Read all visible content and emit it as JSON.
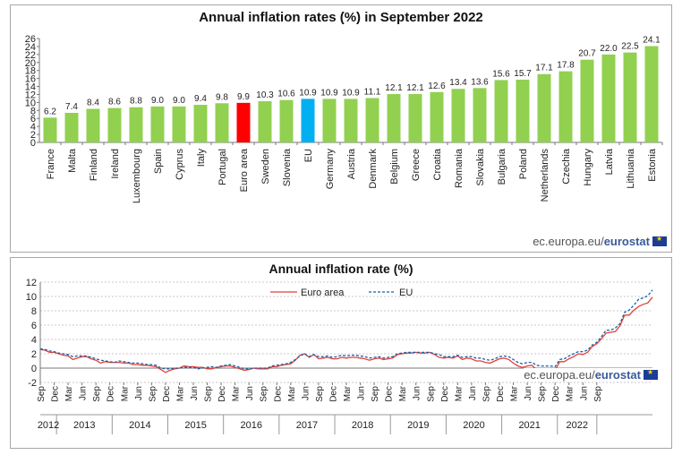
{
  "source": {
    "prefix": "ec.europa.eu/",
    "brand": "eurostat",
    "logo_icon": "eu-flag-icon"
  },
  "chart_data": [
    {
      "type": "bar",
      "title": "Annual inflation rates (%) in September 2022",
      "categories": [
        "France",
        "Malta",
        "Finland",
        "Ireland",
        "Luxembourg",
        "Spain",
        "Cyprus",
        "Italy",
        "Portugal",
        "Euro area",
        "Sweden",
        "Slovenia",
        "EU",
        "Germany",
        "Austria",
        "Denmark",
        "Belgium",
        "Greece",
        "Croatia",
        "Romania",
        "Slovakia",
        "Bulgaria",
        "Poland",
        "Netherlands",
        "Czechia",
        "Hungary",
        "Latvia",
        "Lithuania",
        "Estonia"
      ],
      "values": [
        6.2,
        7.4,
        8.4,
        8.6,
        8.8,
        9.0,
        9.0,
        9.4,
        9.8,
        9.9,
        10.3,
        10.6,
        10.9,
        10.9,
        10.9,
        11.1,
        12.1,
        12.1,
        12.6,
        13.4,
        13.6,
        15.6,
        15.7,
        17.1,
        17.8,
        20.7,
        22.0,
        22.5,
        24.1
      ],
      "value_labels": [
        "6.2",
        "7.4",
        "8.4",
        "8.6",
        "8.8",
        "9.0",
        "9.0",
        "9.4",
        "9.8",
        "9.9",
        "10.3",
        "10.6",
        "10.9",
        "10.9",
        "10.9",
        "11.1",
        "12.1",
        "12.1",
        "12.6",
        "13.4",
        "13.6",
        "15.6",
        "15.7",
        "17.1",
        "17.8",
        "20.7",
        "22.0",
        "22.5",
        "24.1"
      ],
      "ylim": [
        0,
        26
      ],
      "yticks": [
        "0",
        "2",
        "4",
        "6",
        "8",
        "10",
        "12",
        "14",
        "16",
        "18",
        "20",
        "22",
        "24",
        "26"
      ],
      "colors": {
        "default": "#92d050",
        "Euro area": "#ff0000",
        "EU": "#00b0f0"
      },
      "grid": false
    },
    {
      "type": "line",
      "title": "Annual inflation rate (%)",
      "ylim": [
        -2,
        12
      ],
      "yticks": [
        "-2",
        "0",
        "2",
        "4",
        "6",
        "8",
        "10",
        "12"
      ],
      "x_start": "2012-09",
      "x_end": "2022-09",
      "month_ticks": [
        "Sep",
        "Dec",
        "Mar",
        "Jun",
        "Sep",
        "Dec",
        "Mar",
        "Jun",
        "Sep",
        "Dec",
        "Mar",
        "Jun",
        "Sep",
        "Dec",
        "Mar",
        "Jun",
        "Sep",
        "Dec",
        "Mar",
        "Jun",
        "Sep",
        "Dec",
        "Mar",
        "Jun",
        "Sep",
        "Dec",
        "Mar",
        "Jun",
        "Sep",
        "Dec",
        "Mar",
        "Jun",
        "Sep",
        "Dec",
        "Mar",
        "Jun",
        "Sep",
        "Dec",
        "Mar",
        "Jun",
        "Sep"
      ],
      "year_labels": [
        "2012",
        "2013",
        "2014",
        "2015",
        "2016",
        "2017",
        "2018",
        "2019",
        "2020",
        "2021",
        "2022"
      ],
      "legend_position": "top-center",
      "grid": true,
      "series": [
        {
          "name": "Euro area",
          "color": "#e0413a",
          "dash": "solid",
          "values": [
            2.6,
            2.5,
            2.2,
            2.2,
            2.0,
            1.8,
            1.7,
            1.2,
            1.4,
            1.6,
            1.6,
            1.3,
            1.1,
            0.7,
            0.9,
            0.8,
            0.8,
            0.8,
            0.7,
            0.7,
            0.5,
            0.5,
            0.4,
            0.4,
            0.3,
            0.2,
            -0.2,
            -0.6,
            -0.3,
            -0.1,
            0.0,
            0.3,
            0.2,
            0.2,
            0.1,
            0.1,
            -0.1,
            -0.1,
            0.1,
            0.2,
            0.3,
            0.3,
            0.1,
            -0.1,
            -0.3,
            -0.2,
            0.0,
            -0.1,
            -0.1,
            -0.1,
            0.2,
            0.2,
            0.4,
            0.5,
            0.6,
            1.1,
            1.8,
            2.0,
            1.5,
            1.9,
            1.3,
            1.4,
            1.5,
            1.3,
            1.3,
            1.5,
            1.4,
            1.5,
            1.5,
            1.4,
            1.3,
            1.1,
            1.3,
            1.4,
            1.2,
            1.3,
            1.4,
            1.9,
            2.0,
            2.1,
            2.1,
            2.2,
            2.1,
            2.1,
            2.2,
            1.9,
            1.5,
            1.4,
            1.5,
            1.4,
            1.7,
            1.2,
            1.4,
            1.3,
            1.0,
            1.0,
            0.8,
            0.7,
            1.0,
            1.3,
            1.4,
            1.2,
            0.7,
            0.3,
            0.1,
            0.3,
            0.4,
            -0.2,
            -0.3,
            -0.3,
            -0.3,
            -0.3,
            0.9,
            0.9,
            1.3,
            1.6,
            2.0,
            1.9,
            2.2,
            3.0,
            3.4,
            4.1,
            4.9,
            5.0,
            5.1,
            5.9,
            7.4,
            7.4,
            8.1,
            8.6,
            8.9,
            9.1,
            9.9
          ]
        },
        {
          "name": "EU",
          "color": "#1f5fa8",
          "dash": "dashed",
          "values": [
            2.7,
            2.6,
            2.4,
            2.3,
            2.1,
            2.0,
            1.9,
            1.6,
            1.7,
            1.7,
            1.7,
            1.5,
            1.3,
            1.1,
            1.0,
            0.9,
            0.8,
            1.0,
            0.9,
            0.8,
            0.7,
            0.7,
            0.6,
            0.5,
            0.5,
            0.4,
            0.0,
            -0.1,
            -0.1,
            0.0,
            0.0,
            0.1,
            0.1,
            0.1,
            -0.1,
            0.0,
            0.1,
            0.2,
            0.1,
            0.3,
            0.4,
            0.5,
            0.3,
            0.1,
            -0.1,
            -0.1,
            0.0,
            0.0,
            0.0,
            0.0,
            0.3,
            0.4,
            0.5,
            0.6,
            0.8,
            1.2,
            1.7,
            2.0,
            1.6,
            1.9,
            1.6,
            1.6,
            1.7,
            1.5,
            1.6,
            1.8,
            1.7,
            1.8,
            1.8,
            1.7,
            1.6,
            1.4,
            1.5,
            1.6,
            1.4,
            1.5,
            1.6,
            2.0,
            2.1,
            2.2,
            2.2,
            2.2,
            2.2,
            2.2,
            2.2,
            2.0,
            1.9,
            1.6,
            1.6,
            1.6,
            1.8,
            1.5,
            1.6,
            1.6,
            1.4,
            1.4,
            1.2,
            1.1,
            1.3,
            1.6,
            1.7,
            1.6,
            1.2,
            0.8,
            0.6,
            0.8,
            0.8,
            0.4,
            0.3,
            0.3,
            0.3,
            0.2,
            1.2,
            1.3,
            1.7,
            2.0,
            2.3,
            2.3,
            2.5,
            3.2,
            3.6,
            4.4,
            5.3,
            5.3,
            5.6,
            6.2,
            7.8,
            8.1,
            8.8,
            9.6,
            9.8,
            10.1,
            10.9
          ]
        }
      ]
    }
  ]
}
